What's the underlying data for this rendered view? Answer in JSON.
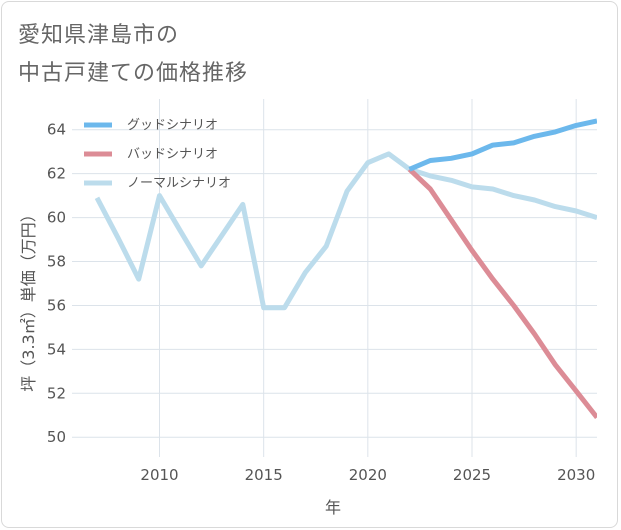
{
  "title_line1": "愛知県津島市の",
  "title_line2": "中古戸建ての価格推移",
  "chart_data": {
    "type": "line",
    "xlabel": "年",
    "ylabel": "坪（3.3㎡）単価（万円）",
    "xlim": [
      2005.8,
      2031
    ],
    "ylim": [
      49.1,
      65.4
    ],
    "xticks": [
      2010,
      2015,
      2020,
      2025,
      2030
    ],
    "yticks": [
      50,
      52,
      54,
      56,
      58,
      60,
      62,
      64
    ],
    "grid": true,
    "legend_position": "top-left",
    "series": [
      {
        "name": "グッドシナリオ",
        "color": "#6cb8ec",
        "x": [
          2022,
          2023,
          2024,
          2025,
          2026,
          2027,
          2028,
          2029,
          2030,
          2031
        ],
        "y": [
          62.2,
          62.6,
          62.7,
          62.9,
          63.3,
          63.4,
          63.7,
          63.9,
          64.2,
          64.4
        ]
      },
      {
        "name": "バッドシナリオ",
        "color": "#dc8c96",
        "x": [
          2022,
          2023,
          2024,
          2025,
          2026,
          2027,
          2028,
          2029,
          2030,
          2031
        ],
        "y": [
          62.2,
          61.3,
          59.9,
          58.5,
          57.2,
          56.0,
          54.7,
          53.3,
          52.1,
          50.9
        ]
      },
      {
        "name": "ノーマルシナリオ",
        "color": "#bcdcec",
        "x": [
          2007,
          2008,
          2009,
          2010,
          2011,
          2012,
          2013,
          2014,
          2015,
          2016,
          2017,
          2018,
          2019,
          2020,
          2021,
          2022,
          2023,
          2024,
          2025,
          2026,
          2027,
          2028,
          2029,
          2030,
          2031
        ],
        "y": [
          60.9,
          59.1,
          57.2,
          61.0,
          59.4,
          57.8,
          59.2,
          60.6,
          55.9,
          55.9,
          57.5,
          58.7,
          61.2,
          62.5,
          62.9,
          62.2,
          61.9,
          61.7,
          61.4,
          61.3,
          61.0,
          60.8,
          60.5,
          60.3,
          60.0
        ]
      }
    ]
  }
}
